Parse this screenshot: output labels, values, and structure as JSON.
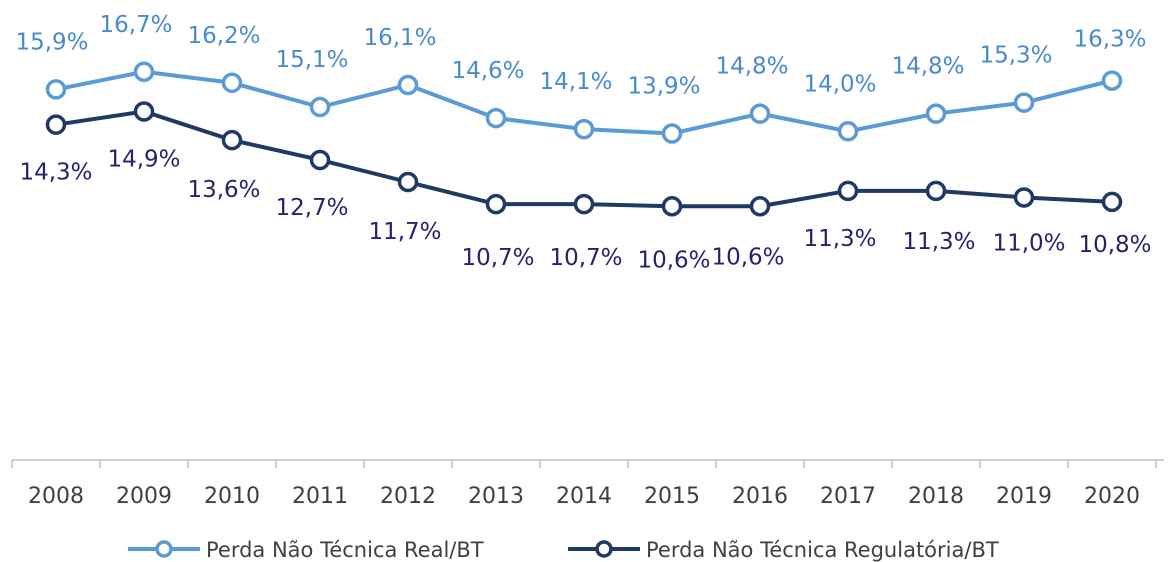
{
  "chart_data": {
    "type": "line",
    "title": "",
    "xlabel": "",
    "ylabel": "",
    "categories": [
      "2008",
      "2009",
      "2010",
      "2011",
      "2012",
      "2013",
      "2014",
      "2015",
      "2016",
      "2017",
      "2018",
      "2019",
      "2020"
    ],
    "ylim": [
      0,
      18
    ],
    "grid": false,
    "legend": "bottom",
    "series": [
      {
        "name": "Perda Não Técnica Real/BT",
        "color": "#5b9bd5",
        "values": [
          15.9,
          16.7,
          16.2,
          15.1,
          16.1,
          14.6,
          14.1,
          13.9,
          14.8,
          14.0,
          14.8,
          15.3,
          16.3
        ],
        "labels": [
          "15,9%",
          "16,7%",
          "16,2%",
          "15,1%",
          "16,1%",
          "14,6%",
          "14,1%",
          "13,9%",
          "14,8%",
          "14,0%",
          "14,8%",
          "15,3%",
          "16,3%"
        ]
      },
      {
        "name": "Perda Não Técnica Regulatória/BT",
        "color": "#1f3864",
        "values": [
          14.3,
          14.9,
          13.6,
          12.7,
          11.7,
          10.7,
          10.7,
          10.6,
          10.6,
          11.3,
          11.3,
          11.0,
          10.8
        ],
        "labels": [
          "14,3%",
          "14,9%",
          "13,6%",
          "12,7%",
          "11,7%",
          "10,7%",
          "10,7%",
          "10,6%",
          "10,6%",
          "11,3%",
          "11,3%",
          "11,0%",
          "10,8%"
        ]
      }
    ]
  }
}
